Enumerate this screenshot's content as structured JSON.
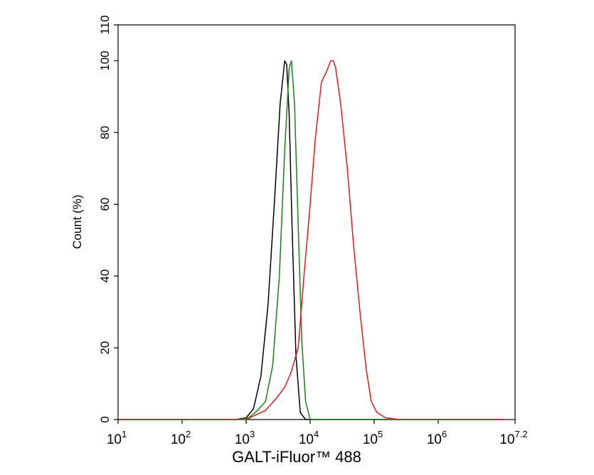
{
  "chart_data": {
    "type": "line",
    "xlabel": "GALT-iFluor™ 488",
    "ylabel": "Count  (%)",
    "x_scale": "log",
    "xlim": [
      10,
      15848932
    ],
    "ylim": [
      0,
      110
    ],
    "x_ticks": [
      {
        "value": 10,
        "base": "10",
        "exp": "1"
      },
      {
        "value": 100,
        "base": "10",
        "exp": "2"
      },
      {
        "value": 1000,
        "base": "10",
        "exp": "3"
      },
      {
        "value": 10000,
        "base": "10",
        "exp": "4"
      },
      {
        "value": 100000,
        "base": "10",
        "exp": "5"
      },
      {
        "value": 1000000,
        "base": "10",
        "exp": "6"
      },
      {
        "value": 15848932,
        "base": "10",
        "exp": "7.2"
      }
    ],
    "y_ticks": [
      "0",
      "20",
      "40",
      "60",
      "80",
      "100",
      "110"
    ],
    "grid": false,
    "series": [
      {
        "color": "#000000",
        "x": [
          10,
          700,
          1000,
          1300,
          1700,
          2200,
          2800,
          3400,
          4000,
          4300,
          4700,
          5200,
          6000,
          7000,
          8500,
          10000000
        ],
        "y": [
          0,
          0,
          0.5,
          3,
          12,
          32,
          62,
          88,
          100,
          99,
          85,
          55,
          18,
          2,
          0,
          0
        ]
      },
      {
        "color": "#1a7f1a",
        "x": [
          10,
          800,
          1100,
          1500,
          2000,
          2600,
          3300,
          4000,
          4700,
          5100,
          5700,
          6400,
          7400,
          8500,
          10000,
          10000000
        ],
        "y": [
          0,
          0,
          0.5,
          2.5,
          5,
          15,
          40,
          75,
          98,
          100,
          88,
          58,
          22,
          5,
          0,
          0
        ]
      },
      {
        "color": "#e01b1b",
        "x": [
          10,
          1000,
          1500,
          2000,
          3000,
          4000,
          5000,
          6500,
          8000,
          10000,
          12000,
          15000,
          18000,
          21000,
          23000,
          25000,
          30000,
          38000,
          48000,
          60000,
          75000,
          90000,
          110000,
          150000,
          250000,
          10000000
        ],
        "y": [
          0,
          0,
          1.5,
          2.5,
          6,
          9,
          13,
          20,
          40,
          60,
          78,
          94,
          97,
          100,
          100,
          98,
          88,
          70,
          48,
          30,
          14,
          5,
          2,
          0.5,
          0,
          0
        ]
      }
    ]
  }
}
